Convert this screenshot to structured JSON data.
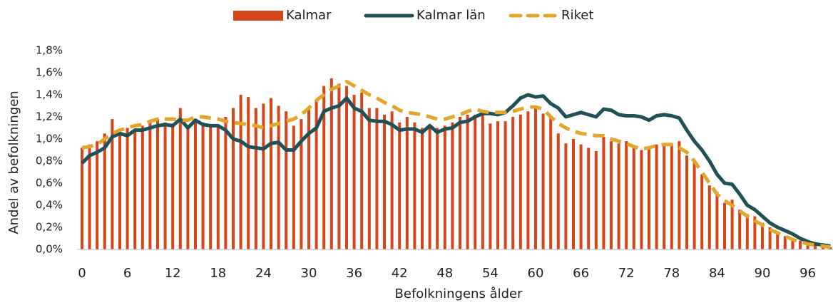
{
  "chart_data": {
    "type": "bar-line",
    "x_label": "Befolkningens ålder",
    "y_label": "Andel av befolkningen",
    "categories": [
      "0",
      null,
      null,
      null,
      null,
      null,
      "6",
      null,
      null,
      null,
      null,
      null,
      "12",
      null,
      null,
      null,
      null,
      null,
      "18",
      null,
      null,
      null,
      null,
      null,
      "24",
      null,
      null,
      null,
      null,
      null,
      "30",
      null,
      null,
      null,
      null,
      null,
      "36",
      null,
      null,
      null,
      null,
      null,
      "42",
      null,
      null,
      null,
      null,
      null,
      "48",
      null,
      null,
      null,
      null,
      null,
      "54",
      null,
      null,
      null,
      null,
      null,
      "60",
      null,
      null,
      null,
      null,
      null,
      "66",
      null,
      null,
      null,
      null,
      null,
      "72",
      null,
      null,
      null,
      null,
      null,
      "78",
      null,
      null,
      null,
      null,
      null,
      "84",
      null,
      null,
      null,
      null,
      null,
      "90",
      null,
      null,
      null,
      null,
      null,
      "96",
      null,
      null,
      null
    ],
    "ylim": [
      0,
      1.8
    ],
    "yticks": [
      {
        "value": 0,
        "label": "0,0%"
      },
      {
        "value": 0.2,
        "label": "0,2%"
      },
      {
        "value": 0.4,
        "label": "0,4%"
      },
      {
        "value": 0.6,
        "label": "0,6%"
      },
      {
        "value": 0.8,
        "label": "0,8%"
      },
      {
        "value": 1.0,
        "label": "1,0%"
      },
      {
        "value": 1.2,
        "label": "1,2%"
      },
      {
        "value": 1.4,
        "label": "1,4%"
      },
      {
        "value": 1.6,
        "label": "1,6%"
      },
      {
        "value": 1.8,
        "label": "1,8%"
      }
    ],
    "series": [
      {
        "name": "Kalmar",
        "kind": "bar",
        "color": "#d6461b",
        "values": [
          0.92,
          0.95,
          0.98,
          1.05,
          1.18,
          1.05,
          1.1,
          1.08,
          1.12,
          1.15,
          1.18,
          1.15,
          1.14,
          1.28,
          1.12,
          1.18,
          1.15,
          1.12,
          1.12,
          1.2,
          1.28,
          1.4,
          1.38,
          1.28,
          1.32,
          1.37,
          1.3,
          1.25,
          1.12,
          1.18,
          1.28,
          1.35,
          1.48,
          1.55,
          1.5,
          1.48,
          1.4,
          1.42,
          1.28,
          1.28,
          1.22,
          1.25,
          1.15,
          1.2,
          1.15,
          1.1,
          1.12,
          1.1,
          1.12,
          1.15,
          1.2,
          1.22,
          1.22,
          1.22,
          1.14,
          1.16,
          1.16,
          1.2,
          1.22,
          1.25,
          1.28,
          1.23,
          1.2,
          1.05,
          0.96,
          1.0,
          0.95,
          0.92,
          0.89,
          1.02,
          0.98,
          0.96,
          0.98,
          0.94,
          0.9,
          0.92,
          0.95,
          0.96,
          0.95,
          0.98,
          0.85,
          0.8,
          0.68,
          0.58,
          0.52,
          0.42,
          0.45,
          0.36,
          0.32,
          0.3,
          0.24,
          0.2,
          0.16,
          0.12,
          0.1,
          0.08,
          0.06,
          0.04,
          0.03,
          0.02
        ]
      },
      {
        "name": "Kalmar län",
        "kind": "line",
        "color": "#1f5157",
        "values": [
          0.78,
          0.85,
          0.88,
          0.92,
          1.02,
          1.05,
          1.03,
          1.08,
          1.08,
          1.1,
          1.12,
          1.13,
          1.12,
          1.18,
          1.1,
          1.17,
          1.13,
          1.12,
          1.12,
          1.08,
          1.0,
          0.98,
          0.93,
          0.92,
          0.91,
          0.96,
          0.97,
          0.9,
          0.9,
          0.98,
          1.05,
          1.1,
          1.25,
          1.28,
          1.3,
          1.37,
          1.28,
          1.25,
          1.17,
          1.16,
          1.16,
          1.13,
          1.08,
          1.09,
          1.09,
          1.06,
          1.12,
          1.06,
          1.09,
          1.1,
          1.15,
          1.16,
          1.2,
          1.23,
          1.23,
          1.22,
          1.24,
          1.3,
          1.37,
          1.4,
          1.38,
          1.39,
          1.32,
          1.28,
          1.2,
          1.22,
          1.24,
          1.22,
          1.2,
          1.27,
          1.26,
          1.22,
          1.21,
          1.21,
          1.2,
          1.17,
          1.21,
          1.22,
          1.21,
          1.19,
          1.08,
          0.98,
          0.9,
          0.8,
          0.68,
          0.6,
          0.59,
          0.5,
          0.4,
          0.36,
          0.3,
          0.24,
          0.2,
          0.17,
          0.14,
          0.1,
          0.07,
          0.05,
          0.04,
          0.03
        ]
      },
      {
        "name": "Riket",
        "kind": "dashed",
        "color": "#e3a52a",
        "values": [
          0.92,
          0.93,
          0.95,
          1.0,
          1.05,
          1.08,
          1.1,
          1.12,
          1.13,
          1.16,
          1.18,
          1.18,
          1.18,
          1.17,
          1.17,
          1.2,
          1.2,
          1.19,
          1.18,
          1.16,
          1.15,
          1.14,
          1.13,
          1.12,
          1.1,
          1.12,
          1.14,
          1.16,
          1.18,
          1.22,
          1.28,
          1.35,
          1.4,
          1.45,
          1.48,
          1.52,
          1.48,
          1.44,
          1.4,
          1.37,
          1.33,
          1.3,
          1.26,
          1.24,
          1.23,
          1.22,
          1.2,
          1.18,
          1.18,
          1.2,
          1.22,
          1.25,
          1.27,
          1.25,
          1.24,
          1.24,
          1.24,
          1.25,
          1.27,
          1.29,
          1.29,
          1.27,
          1.2,
          1.14,
          1.1,
          1.07,
          1.05,
          1.04,
          1.03,
          1.03,
          1.0,
          0.98,
          0.96,
          0.93,
          0.91,
          0.92,
          0.94,
          0.95,
          0.95,
          0.92,
          0.88,
          0.8,
          0.7,
          0.6,
          0.5,
          0.44,
          0.4,
          0.35,
          0.3,
          0.26,
          0.22,
          0.18,
          0.15,
          0.12,
          0.09,
          0.07,
          0.05,
          0.04,
          0.03,
          0.02
        ]
      }
    ]
  }
}
